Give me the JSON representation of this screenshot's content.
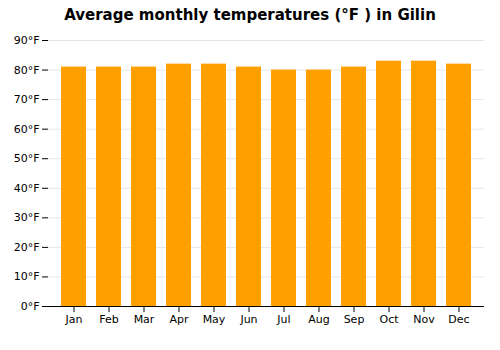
{
  "chart_data": {
    "type": "bar",
    "title": "Average monthly temperatures (°F ) in Gilin",
    "categories": [
      "Jan",
      "Feb",
      "Mar",
      "Apr",
      "May",
      "Jun",
      "Jul",
      "Aug",
      "Sep",
      "Oct",
      "Nov",
      "Dec"
    ],
    "values": [
      81,
      81,
      81,
      82,
      82,
      81,
      80,
      80,
      81,
      83,
      83,
      82
    ],
    "color": "#FFA000",
    "ylim": [
      0,
      90
    ],
    "yticks": [
      {
        "value": 0,
        "label": "0°F"
      },
      {
        "value": 10,
        "label": "10°F"
      },
      {
        "value": 20,
        "label": "20°F"
      },
      {
        "value": 30,
        "label": "30°F"
      },
      {
        "value": 40,
        "label": "40°F"
      },
      {
        "value": 50,
        "label": "50°F"
      },
      {
        "value": 60,
        "label": "60°F"
      },
      {
        "value": 70,
        "label": "70°F"
      },
      {
        "value": 80,
        "label": "80°F"
      },
      {
        "value": 90,
        "label": "90°F"
      }
    ],
    "grid": true
  }
}
